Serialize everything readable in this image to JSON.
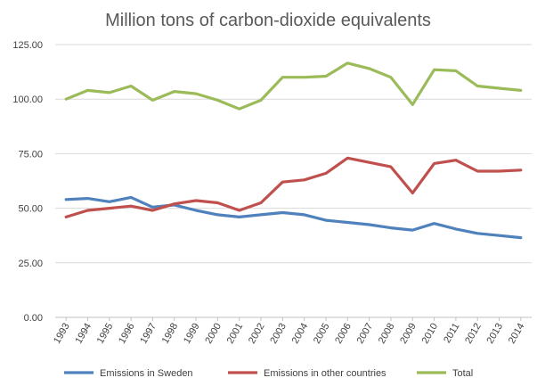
{
  "chart_data": {
    "type": "line",
    "title": "Million tons of carbon-dioxide equivalents",
    "xlabel": "",
    "ylabel": "",
    "ylim": [
      0,
      125
    ],
    "yticks": [
      "0.00",
      "25.00",
      "50.00",
      "75.00",
      "100.00",
      "125.00"
    ],
    "categories": [
      "1993",
      "1994",
      "1995",
      "1996",
      "1997",
      "1998",
      "1999",
      "2000",
      "2001",
      "2002",
      "2003",
      "2004",
      "2005",
      "2006",
      "2007",
      "2008",
      "2009",
      "2010",
      "2011",
      "2012",
      "2013",
      "2014"
    ],
    "grid": true,
    "legend_position": "bottom",
    "series": [
      {
        "name": "Emissions in Sweden",
        "color": "#4f81bd",
        "values": [
          54,
          54.5,
          53,
          55,
          50.5,
          51.5,
          49,
          47,
          46,
          47,
          48,
          47,
          44.5,
          43.5,
          42.5,
          41,
          40,
          43,
          40.5,
          38.5,
          37.5,
          36.5
        ]
      },
      {
        "name": "Emissions in other countries",
        "color": "#c0504d",
        "values": [
          46,
          49,
          50,
          51,
          49,
          52,
          53.5,
          52.5,
          49,
          52.5,
          62,
          63,
          66,
          73,
          71,
          69,
          57,
          70.5,
          72,
          67,
          67,
          67.5
        ]
      },
      {
        "name": "Total",
        "color": "#9bbb59",
        "values": [
          100,
          104,
          103,
          106,
          99.5,
          103.5,
          102.5,
          99.5,
          95.5,
          99.5,
          110,
          110,
          110.5,
          116.5,
          114,
          110,
          97.5,
          113.5,
          113,
          106,
          105,
          104
        ]
      }
    ]
  }
}
